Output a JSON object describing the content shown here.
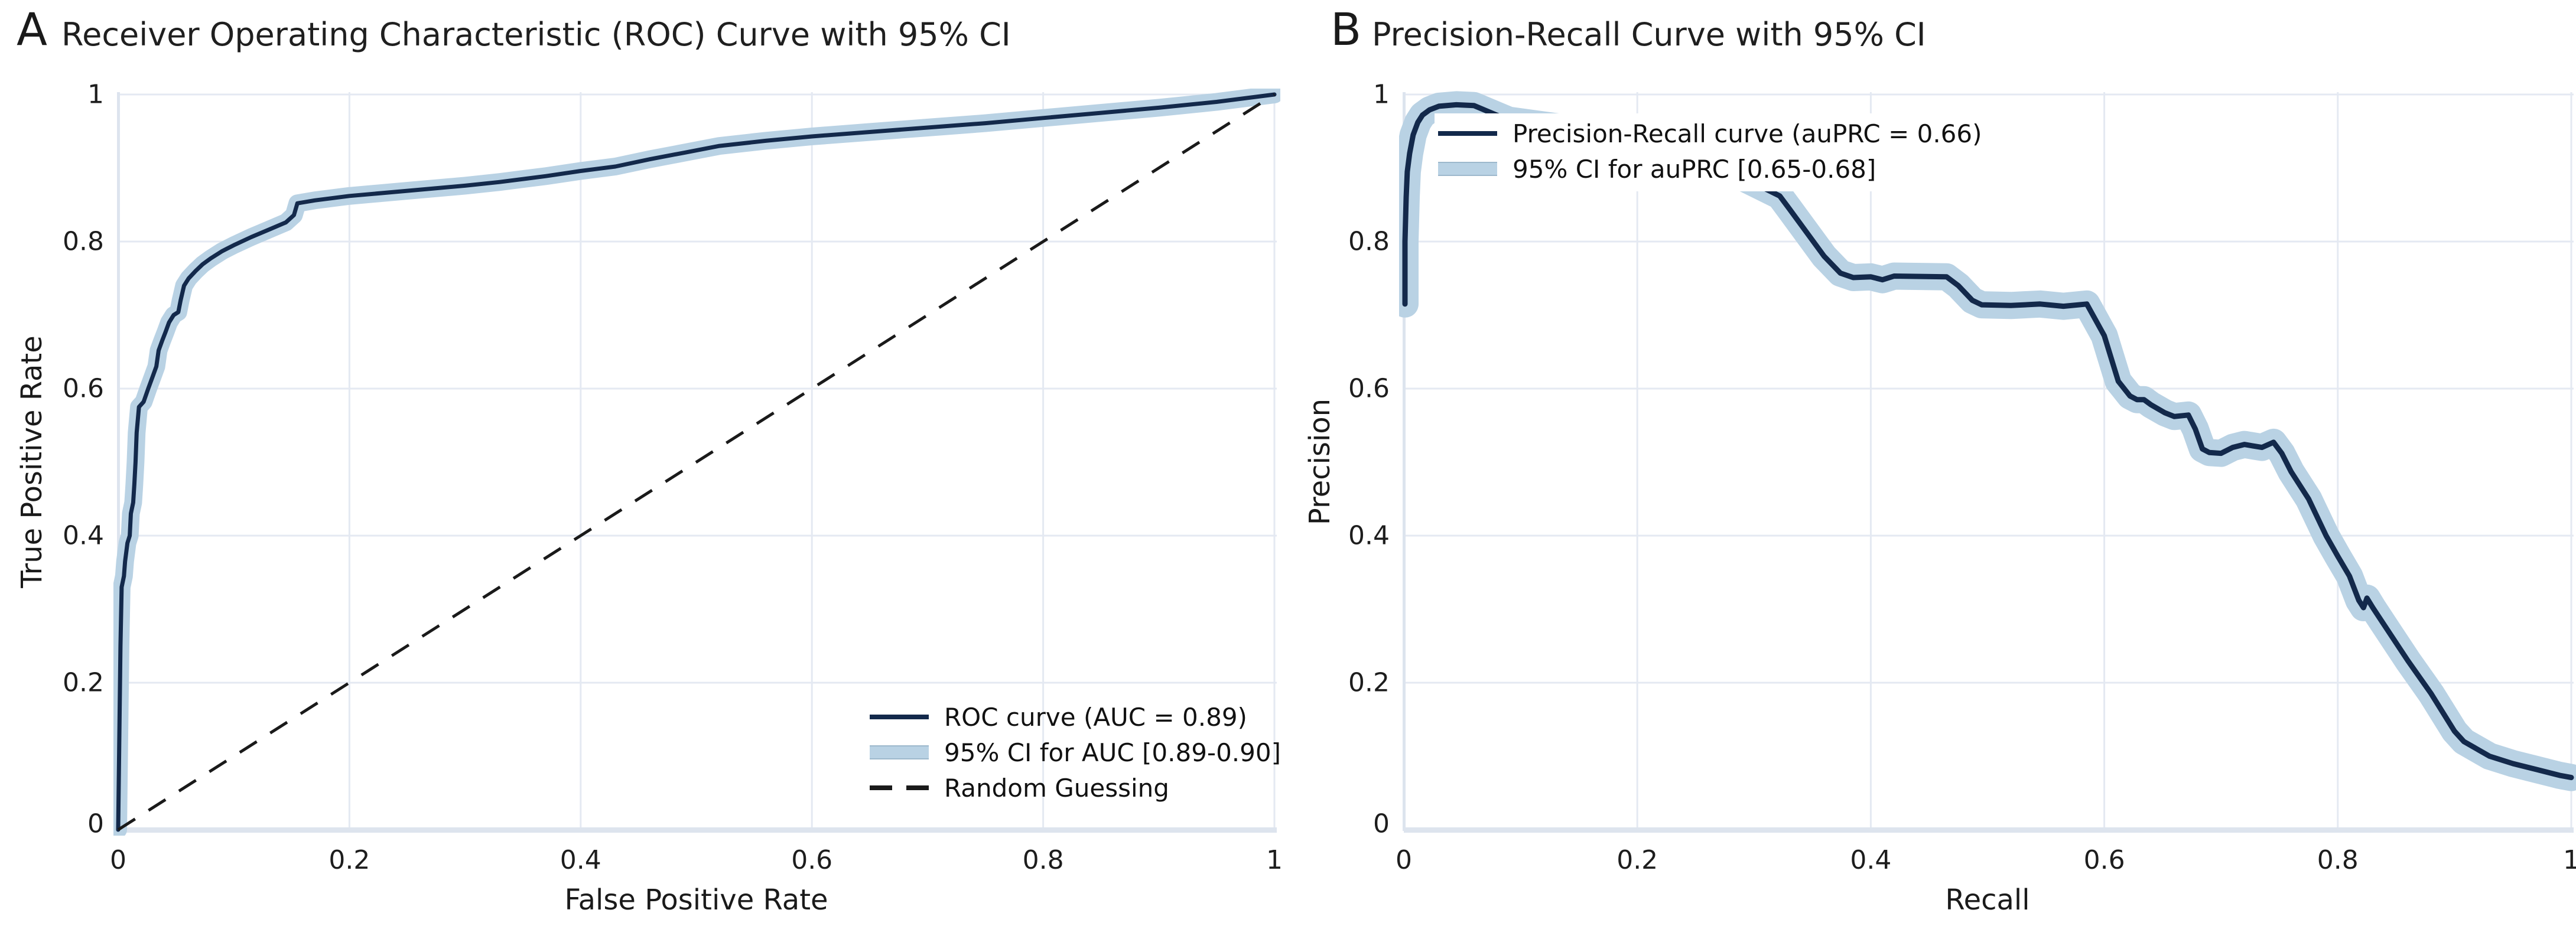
{
  "colors": {
    "curve_line": "#13294b",
    "ci_band": "#b9d2e4",
    "dashed_line": "#1a1a1a",
    "gridline": "#e4e9f2",
    "axis_line": "#dde4ee",
    "text": "#1a1a1a"
  },
  "panels": [
    {
      "letter": "A",
      "title": "Receiver Operating Characteristic (ROC) Curve with 95% CI",
      "xlabel": "False Positive Rate",
      "ylabel": "True Positive Rate",
      "legend": [
        {
          "swatch": "line",
          "label": "ROC curve (AUC = 0.89)"
        },
        {
          "swatch": "band",
          "label": "95% CI for AUC [0.89-0.90]"
        },
        {
          "swatch": "dash",
          "label": "Random Guessing"
        }
      ]
    },
    {
      "letter": "B",
      "title": "Precision-Recall Curve with 95% CI",
      "xlabel": "Recall",
      "ylabel": "Precision",
      "legend": [
        {
          "swatch": "line",
          "label": "Precision-Recall curve (auPRC = 0.66)"
        },
        {
          "swatch": "band",
          "label": "95% CI for auPRC [0.65-0.68]"
        }
      ]
    }
  ],
  "chart_data": [
    {
      "type": "line",
      "panel": "A",
      "title": "Receiver Operating Characteristic (ROC) Curve with 95% CI",
      "xlabel": "False Positive Rate",
      "ylabel": "True Positive Rate",
      "xlim": [
        0,
        1
      ],
      "ylim": [
        0,
        1
      ],
      "x_ticks": [
        0,
        0.2,
        0.4,
        0.6,
        0.8,
        1
      ],
      "y_ticks": [
        0,
        0.2,
        0.4,
        0.6,
        0.8,
        1
      ],
      "x_tick_labels": [
        "0",
        "0.2",
        "0.4",
        "0.6",
        "0.8",
        "1"
      ],
      "y_tick_labels": [
        "0",
        "0.2",
        "0.4",
        "0.6",
        "0.8",
        "1"
      ],
      "grid": true,
      "legend_position": "lower right",
      "series": [
        {
          "name": "ROC curve (AUC = 0.89)",
          "auc": 0.89,
          "ci_95": [
            0.89,
            0.9
          ],
          "style": "solid-with-band",
          "points": [
            [
              0,
              0
            ],
            [
              0.002,
              0.25
            ],
            [
              0.003,
              0.33
            ],
            [
              0.005,
              0.345
            ],
            [
              0.006,
              0.365
            ],
            [
              0.008,
              0.39
            ],
            [
              0.01,
              0.4
            ],
            [
              0.011,
              0.43
            ],
            [
              0.013,
              0.445
            ],
            [
              0.014,
              0.47
            ],
            [
              0.015,
              0.5
            ],
            [
              0.016,
              0.54
            ],
            [
              0.018,
              0.575
            ],
            [
              0.022,
              0.582
            ],
            [
              0.026,
              0.6
            ],
            [
              0.03,
              0.617
            ],
            [
              0.033,
              0.63
            ],
            [
              0.035,
              0.652
            ],
            [
              0.038,
              0.665
            ],
            [
              0.041,
              0.677
            ],
            [
              0.044,
              0.69
            ],
            [
              0.048,
              0.7
            ],
            [
              0.052,
              0.704
            ],
            [
              0.054,
              0.72
            ],
            [
              0.057,
              0.74
            ],
            [
              0.061,
              0.75
            ],
            [
              0.067,
              0.76
            ],
            [
              0.073,
              0.769
            ],
            [
              0.08,
              0.777
            ],
            [
              0.09,
              0.787
            ],
            [
              0.1,
              0.795
            ],
            [
              0.115,
              0.806
            ],
            [
              0.13,
              0.816
            ],
            [
              0.145,
              0.826
            ],
            [
              0.152,
              0.836
            ],
            [
              0.155,
              0.852
            ],
            [
              0.17,
              0.856
            ],
            [
              0.2,
              0.862
            ],
            [
              0.25,
              0.869
            ],
            [
              0.3,
              0.876
            ],
            [
              0.33,
              0.881
            ],
            [
              0.37,
              0.889
            ],
            [
              0.4,
              0.896
            ],
            [
              0.43,
              0.902
            ],
            [
              0.46,
              0.912
            ],
            [
              0.49,
              0.921
            ],
            [
              0.52,
              0.93
            ],
            [
              0.56,
              0.937
            ],
            [
              0.6,
              0.943
            ],
            [
              0.65,
              0.949
            ],
            [
              0.7,
              0.955
            ],
            [
              0.75,
              0.961
            ],
            [
              0.8,
              0.968
            ],
            [
              0.85,
              0.975
            ],
            [
              0.9,
              0.982
            ],
            [
              0.95,
              0.99
            ],
            [
              1,
              1
            ]
          ]
        },
        {
          "name": "Random Guessing",
          "style": "dashed",
          "points": [
            [
              0,
              0
            ],
            [
              1,
              1
            ]
          ]
        }
      ]
    },
    {
      "type": "line",
      "panel": "B",
      "title": "Precision-Recall Curve with 95% CI",
      "xlabel": "Recall",
      "ylabel": "Precision",
      "xlim": [
        0,
        1
      ],
      "ylim": [
        0,
        1
      ],
      "x_ticks": [
        0,
        0.2,
        0.4,
        0.6,
        0.8,
        1
      ],
      "y_ticks": [
        0,
        0.2,
        0.4,
        0.6,
        0.8,
        1
      ],
      "x_tick_labels": [
        "0",
        "0.2",
        "0.4",
        "0.6",
        "0.8",
        "1"
      ],
      "y_tick_labels": [
        "0",
        "0.2",
        "0.4",
        "0.6",
        "0.8",
        "1"
      ],
      "grid": true,
      "legend_position": "upper left",
      "series": [
        {
          "name": "Precision-Recall curve (auPRC = 0.66)",
          "auprc": 0.66,
          "ci_95": [
            0.65,
            0.68
          ],
          "style": "solid-with-band",
          "points": [
            [
              0.001,
              0.715
            ],
            [
              0.001,
              0.8
            ],
            [
              0.002,
              0.86
            ],
            [
              0.003,
              0.895
            ],
            [
              0.005,
              0.92
            ],
            [
              0.008,
              0.945
            ],
            [
              0.012,
              0.962
            ],
            [
              0.016,
              0.972
            ],
            [
              0.022,
              0.979
            ],
            [
              0.03,
              0.984
            ],
            [
              0.045,
              0.986
            ],
            [
              0.06,
              0.985
            ],
            [
              0.09,
              0.965
            ],
            [
              0.15,
              0.952
            ],
            [
              0.22,
              0.93
            ],
            [
              0.28,
              0.895
            ],
            [
              0.322,
              0.862
            ],
            [
              0.33,
              0.845
            ],
            [
              0.36,
              0.78
            ],
            [
              0.374,
              0.757
            ],
            [
              0.385,
              0.751
            ],
            [
              0.4,
              0.752
            ],
            [
              0.41,
              0.748
            ],
            [
              0.42,
              0.753
            ],
            [
              0.465,
              0.752
            ],
            [
              0.475,
              0.74
            ],
            [
              0.487,
              0.72
            ],
            [
              0.495,
              0.714
            ],
            [
              0.52,
              0.713
            ],
            [
              0.545,
              0.715
            ],
            [
              0.565,
              0.712
            ],
            [
              0.585,
              0.715
            ],
            [
              0.6,
              0.672
            ],
            [
              0.612,
              0.61
            ],
            [
              0.617,
              0.6
            ],
            [
              0.622,
              0.59
            ],
            [
              0.628,
              0.585
            ],
            [
              0.634,
              0.585
            ],
            [
              0.64,
              0.578
            ],
            [
              0.652,
              0.567
            ],
            [
              0.66,
              0.562
            ],
            [
              0.672,
              0.564
            ],
            [
              0.678,
              0.545
            ],
            [
              0.684,
              0.518
            ],
            [
              0.69,
              0.513
            ],
            [
              0.7,
              0.512
            ],
            [
              0.71,
              0.52
            ],
            [
              0.72,
              0.524
            ],
            [
              0.735,
              0.52
            ],
            [
              0.745,
              0.527
            ],
            [
              0.752,
              0.512
            ],
            [
              0.76,
              0.487
            ],
            [
              0.775,
              0.45
            ],
            [
              0.79,
              0.4
            ],
            [
              0.8,
              0.372
            ],
            [
              0.81,
              0.345
            ],
            [
              0.818,
              0.312
            ],
            [
              0.822,
              0.302
            ],
            [
              0.825,
              0.315
            ],
            [
              0.83,
              0.302
            ],
            [
              0.84,
              0.278
            ],
            [
              0.86,
              0.23
            ],
            [
              0.88,
              0.185
            ],
            [
              0.9,
              0.134
            ],
            [
              0.908,
              0.12
            ],
            [
              0.93,
              0.1
            ],
            [
              0.95,
              0.09
            ],
            [
              0.97,
              0.082
            ],
            [
              0.99,
              0.074
            ],
            [
              1,
              0.071
            ]
          ]
        }
      ]
    }
  ]
}
